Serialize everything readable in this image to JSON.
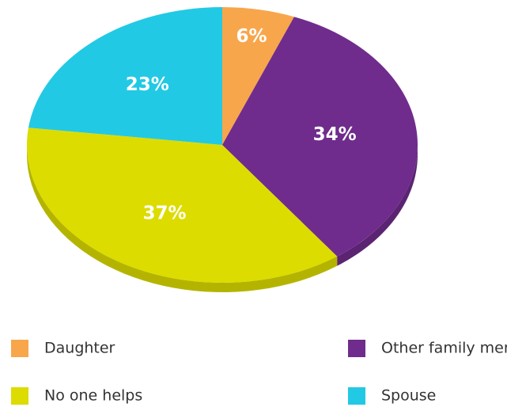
{
  "chart_data": {
    "type": "pie",
    "categories": [
      "Daughter",
      "Other family members",
      "No one helps",
      "Spouse"
    ],
    "values": [
      6,
      34,
      37,
      23
    ],
    "value_labels": [
      "6%",
      "34%",
      "37%",
      "23%"
    ],
    "colors": [
      "#f8a64b",
      "#6f2c8c",
      "#dcdc00",
      "#22c9e4"
    ],
    "legend": "bottom"
  }
}
